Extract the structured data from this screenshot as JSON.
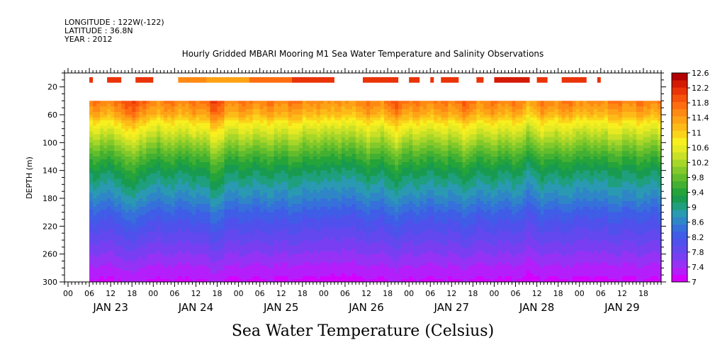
{
  "header": {
    "longitude": "LONGITUDE : 122W(-122)",
    "latitude": "LATITUDE : 36.8N",
    "year": "YEAR : 2012",
    "title": "Hourly Gridded MBARI Mooring M1 Sea Water Temperature and Salinity Observations"
  },
  "footer": {
    "variable_label": "Sea Water Temperature (Celsius)"
  },
  "chart_data": {
    "type": "heatmap",
    "title": "Hourly Gridded MBARI Mooring M1 Sea Water Temperature and Salinity Observations",
    "xlabel": "",
    "ylabel": "DEPTH (m)",
    "x_start": "2012-01-22T23:00",
    "x_end": "2012-01-29T23:00",
    "data_start": "2012-01-23T06:00",
    "x_tick_labels": [
      "00",
      "06",
      "12",
      "18",
      "00",
      "06",
      "12",
      "18",
      "00",
      "06",
      "12",
      "18",
      "00",
      "06",
      "12",
      "18",
      "00",
      "06",
      "12",
      "18",
      "00",
      "06",
      "12",
      "18",
      "00",
      "06",
      "12",
      "18"
    ],
    "date_labels": [
      "JAN 23",
      "JAN 24",
      "JAN 25",
      "JAN 26",
      "JAN 27",
      "JAN 28",
      "JAN 29"
    ],
    "y_ticks": [
      20,
      60,
      100,
      140,
      180,
      220,
      260,
      300
    ],
    "y_tick_labels": [
      "20",
      "60",
      "100",
      "140",
      "180",
      "220",
      "260",
      "300"
    ],
    "ylim": [
      0,
      300
    ],
    "y_reversed": true,
    "surface_depth_m": 10,
    "subsurface_top_depth_m": 40,
    "colorbar": {
      "levels": [
        7,
        7.2,
        7.4,
        7.6,
        7.8,
        8,
        8.2,
        8.4,
        8.6,
        8.8,
        9,
        9.2,
        9.4,
        9.6,
        9.8,
        10,
        10.2,
        10.4,
        10.6,
        10.8,
        11,
        11.2,
        11.4,
        11.6,
        11.8,
        12,
        12.2,
        12.4,
        12.6
      ],
      "labels": [
        "7",
        "7.4",
        "7.8",
        "8.2",
        "8.6",
        "9",
        "9.4",
        "9.8",
        "10.2",
        "10.6",
        "11",
        "11.4",
        "11.8",
        "12.2",
        "12.6"
      ],
      "colors": [
        "#d600ff",
        "#b41efa",
        "#9632f5",
        "#7a3ef2",
        "#6448ef",
        "#5050ec",
        "#3f5de6",
        "#3670da",
        "#2f86c6",
        "#2a99b2",
        "#1f9f7e",
        "#189b50",
        "#25a43a",
        "#43b032",
        "#62bd2c",
        "#84c92a",
        "#a6d628",
        "#c8e026",
        "#e6ea22",
        "#f8ef1e",
        "#fbd41a",
        "#fdbb18",
        "#fea316",
        "#fe8a14",
        "#fe6e10",
        "#f7520b",
        "#ea3307",
        "#d41a03",
        "#b30000"
      ]
    },
    "surface_segments": [
      {
        "start_hour": 7,
        "end_hour": 8,
        "value": 12.2
      },
      {
        "start_hour": 12,
        "end_hour": 16,
        "value": 12.2
      },
      {
        "start_hour": 20,
        "end_hour": 25,
        "value": 12.2
      },
      {
        "start_hour": 32,
        "end_hour": 40,
        "value": 11.6
      },
      {
        "start_hour": 40,
        "end_hour": 52,
        "value": 11.4
      },
      {
        "start_hour": 52,
        "end_hour": 64,
        "value": 11.8
      },
      {
        "start_hour": 64,
        "end_hour": 76,
        "value": 12.2
      },
      {
        "start_hour": 84,
        "end_hour": 94,
        "value": 12.2
      },
      {
        "start_hour": 97,
        "end_hour": 100,
        "value": 12.2
      },
      {
        "start_hour": 103,
        "end_hour": 104,
        "value": 12.2
      },
      {
        "start_hour": 106,
        "end_hour": 111,
        "value": 12.2
      },
      {
        "start_hour": 116,
        "end_hour": 118,
        "value": 12.2
      },
      {
        "start_hour": 121,
        "end_hour": 131,
        "value": 12.4
      },
      {
        "start_hour": 133,
        "end_hour": 136,
        "value": 12.2
      },
      {
        "start_hour": 140,
        "end_hour": 147,
        "value": 12.2
      },
      {
        "start_hour": 150,
        "end_hour": 151,
        "value": 12.2
      }
    ],
    "profile": [
      {
        "depth": 40,
        "value": 11.8
      },
      {
        "depth": 60,
        "value": 11.4
      },
      {
        "depth": 70,
        "value": 11.0
      },
      {
        "depth": 80,
        "value": 10.7
      },
      {
        "depth": 100,
        "value": 10.2
      },
      {
        "depth": 120,
        "value": 9.7
      },
      {
        "depth": 140,
        "value": 9.3
      },
      {
        "depth": 160,
        "value": 9.0
      },
      {
        "depth": 180,
        "value": 8.7
      },
      {
        "depth": 200,
        "value": 8.35
      },
      {
        "depth": 220,
        "value": 8.1
      },
      {
        "depth": 240,
        "value": 7.85
      },
      {
        "depth": 260,
        "value": 7.6
      },
      {
        "depth": 280,
        "value": 7.35
      },
      {
        "depth": 300,
        "value": 7.15
      }
    ],
    "anomalies": [
      {
        "hour": 19,
        "value": 0.6
      },
      {
        "hour": 42,
        "value": 0.5
      },
      {
        "hour": 72,
        "value": -0.2
      },
      {
        "hour": 79,
        "value": -0.3
      },
      {
        "hour": 94,
        "value": 0.3
      },
      {
        "hour": 112,
        "value": 0.2
      },
      {
        "hour": 131,
        "value": -0.25
      },
      {
        "hour": 148,
        "value": -0.2
      }
    ]
  }
}
